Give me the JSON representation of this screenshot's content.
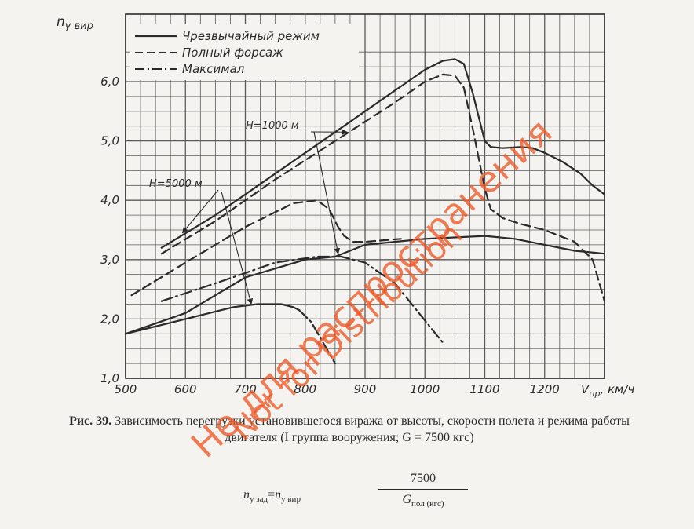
{
  "chart_data": {
    "type": "line",
    "ylabel_main": "n",
    "ylabel_sub": "y вир",
    "xlabel_main": "V",
    "xlabel_sub": "пр",
    "xlabel_unit": ", км/ч",
    "xlim": [
      500,
      1300
    ],
    "ylim": [
      1.0,
      6.6
    ],
    "x_ticks": [
      {
        "value": 500,
        "label": "500"
      },
      {
        "value": 600,
        "label": "600"
      },
      {
        "value": 700,
        "label": "700"
      },
      {
        "value": 800,
        "label": "800"
      },
      {
        "value": 900,
        "label": "900"
      },
      {
        "value": 1000,
        "label": "1000"
      },
      {
        "value": 1100,
        "label": "1100"
      },
      {
        "value": 1200,
        "label": "1200"
      }
    ],
    "y_ticks": [
      {
        "value": 1.0,
        "label": "1,0"
      },
      {
        "value": 2.0,
        "label": "2,0"
      },
      {
        "value": 3.0,
        "label": "3,0"
      },
      {
        "value": 4.0,
        "label": "4,0"
      },
      {
        "value": 5.0,
        "label": "5,0"
      },
      {
        "value": 6.0,
        "label": "6,0"
      }
    ],
    "legend": [
      {
        "label": "Чрезвычайный режим",
        "style": "solid"
      },
      {
        "label": "Полный форсаж",
        "style": "dashed"
      },
      {
        "label": "Максимал",
        "style": "dashdot"
      }
    ],
    "annotations": [
      {
        "text": "H=1000 м"
      },
      {
        "text": "H=5000 м"
      }
    ],
    "series": [
      {
        "style": "solid",
        "x": [
          560,
          650,
          750,
          850,
          950,
          1000,
          1030,
          1050,
          1065,
          1080,
          1100,
          1110,
          1130,
          1160,
          1180,
          1200,
          1230,
          1260,
          1280,
          1300
        ],
        "y": [
          3.2,
          3.75,
          4.45,
          5.15,
          5.85,
          6.2,
          6.35,
          6.38,
          6.3,
          5.8,
          5.0,
          4.9,
          4.88,
          4.9,
          4.88,
          4.8,
          4.65,
          4.45,
          4.25,
          4.1
        ]
      },
      {
        "style": "dashed",
        "x": [
          560,
          650,
          750,
          850,
          950,
          1000,
          1030,
          1050,
          1065,
          1080,
          1100,
          1110,
          1130,
          1160,
          1200,
          1250,
          1280,
          1300
        ],
        "y": [
          3.1,
          3.65,
          4.35,
          5.0,
          5.65,
          6.0,
          6.12,
          6.1,
          5.9,
          5.2,
          4.2,
          3.85,
          3.7,
          3.6,
          3.5,
          3.3,
          3.0,
          2.3
        ]
      },
      {
        "style": "solid",
        "x": [
          500,
          600,
          700,
          800,
          850,
          900,
          1000,
          1100,
          1150,
          1200,
          1250,
          1300
        ],
        "y": [
          1.75,
          2.1,
          2.7,
          3.0,
          3.05,
          3.25,
          3.35,
          3.4,
          3.35,
          3.25,
          3.15,
          3.1
        ]
      },
      {
        "style": "dashed",
        "x": [
          510,
          600,
          700,
          780,
          820,
          840,
          855,
          865,
          880,
          900,
          960
        ],
        "y": [
          2.4,
          2.95,
          3.55,
          3.95,
          4.0,
          3.85,
          3.55,
          3.4,
          3.3,
          3.3,
          3.35
        ]
      },
      {
        "style": "dashdot",
        "x": [
          560,
          650,
          750,
          820,
          860,
          900,
          950,
          990,
          1030
        ],
        "y": [
          2.3,
          2.6,
          2.95,
          3.05,
          3.05,
          2.95,
          2.6,
          2.1,
          1.6
        ]
      },
      {
        "style": "solid",
        "x": [
          500,
          600,
          680,
          720,
          760,
          780,
          790
        ],
        "y": [
          1.75,
          2.0,
          2.2,
          2.25,
          2.25,
          2.2,
          2.15
        ]
      },
      {
        "style": "dashdot",
        "x": [
          790,
          810,
          830,
          850
        ],
        "y": [
          2.15,
          1.95,
          1.6,
          1.25
        ]
      }
    ]
  },
  "caption": {
    "figure_label": "Рис. 39.",
    "text": "Зависимость перегрузки установившегося виража от высоты, скорости полета и режима работы двигателя (I группа вооружения; G = 7500 кгс)"
  },
  "formula": {
    "lhs_main_1": "n",
    "lhs_sub_1": "y зад",
    "eq": "=",
    "lhs_main_2": "n",
    "lhs_sub_2": "y вир",
    "numerator": "7500",
    "denominator_main": "G",
    "denominator_sub": "пол (кгс)"
  },
  "watermark": {
    "line1": "Не для распространения",
    "line2": "Not for Distribution"
  },
  "colors": {
    "ink": "#2a2a2a",
    "grid": "#5a5a5a",
    "watermark": "#ec5828",
    "paper": "#f4f3ef"
  }
}
